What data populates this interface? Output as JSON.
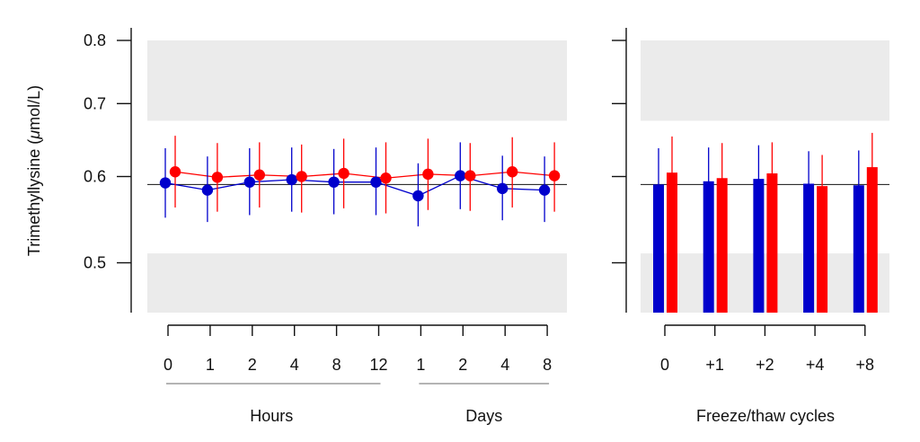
{
  "chart_data": [
    {
      "type": "line",
      "ylabel_prefix": "Trimethyllysine (",
      "ylabel_mu": "μ",
      "ylabel_suffix": "mol/L)",
      "ylim": [
        0.45,
        0.82
      ],
      "y_scale": "log",
      "y_ticks": [
        "0.5",
        "0.6",
        "0.7",
        "0.8"
      ],
      "reference_line": 0.59,
      "shaded_bands": [
        {
          "from": 0.45,
          "to": 0.51
        },
        {
          "from": 0.675,
          "to": 0.8
        }
      ],
      "categories": [
        "0",
        "1",
        "2",
        "4",
        "8",
        "12",
        "1",
        "2",
        "4",
        "8"
      ],
      "groups": [
        {
          "label": "Hours",
          "categories": [
            "0",
            "1",
            "2",
            "4",
            "8",
            "12"
          ]
        },
        {
          "label": "Days",
          "categories": [
            "1",
            "2",
            "4",
            "8"
          ]
        }
      ],
      "series": [
        {
          "color": "#0000cc",
          "values": [
            0.592,
            0.583,
            0.593,
            0.596,
            0.593,
            0.593,
            0.576,
            0.601,
            0.585,
            0.583
          ],
          "lower": [
            0.55,
            0.545,
            0.553,
            0.557,
            0.554,
            0.553,
            0.54,
            0.56,
            0.547,
            0.545
          ],
          "upper": [
            0.637,
            0.626,
            0.637,
            0.638,
            0.636,
            0.638,
            0.617,
            0.645,
            0.627,
            0.626
          ]
        },
        {
          "color": "#ff0000",
          "values": [
            0.606,
            0.599,
            0.602,
            0.6,
            0.604,
            0.598,
            0.603,
            0.601,
            0.606,
            0.601
          ],
          "lower": [
            0.562,
            0.557,
            0.562,
            0.556,
            0.561,
            0.555,
            0.559,
            0.558,
            0.562,
            0.557
          ],
          "upper": [
            0.654,
            0.644,
            0.645,
            0.642,
            0.65,
            0.645,
            0.65,
            0.644,
            0.652,
            0.645
          ]
        }
      ]
    },
    {
      "type": "bar",
      "xlabel": "Freeze/thaw cycles",
      "ylim": [
        0.45,
        0.82
      ],
      "y_scale": "log",
      "reference_line": 0.59,
      "shaded_bands": [
        {
          "from": 0.45,
          "to": 0.51
        },
        {
          "from": 0.675,
          "to": 0.8
        }
      ],
      "categories": [
        "0",
        "+1",
        "+2",
        "+4",
        "+8"
      ],
      "series": [
        {
          "color": "#0000cc",
          "values": [
            0.59,
            0.594,
            0.597,
            0.591,
            0.589
          ],
          "lower": [
            0.551,
            0.553,
            0.556,
            0.552,
            0.551
          ],
          "upper": [
            0.637,
            0.638,
            0.641,
            0.633,
            0.634
          ]
        },
        {
          "color": "#ff0000",
          "values": [
            0.605,
            0.598,
            0.604,
            0.588,
            0.612
          ],
          "lower": [
            0.562,
            0.556,
            0.561,
            0.548,
            0.567
          ],
          "upper": [
            0.653,
            0.644,
            0.645,
            0.628,
            0.658
          ]
        }
      ]
    }
  ]
}
